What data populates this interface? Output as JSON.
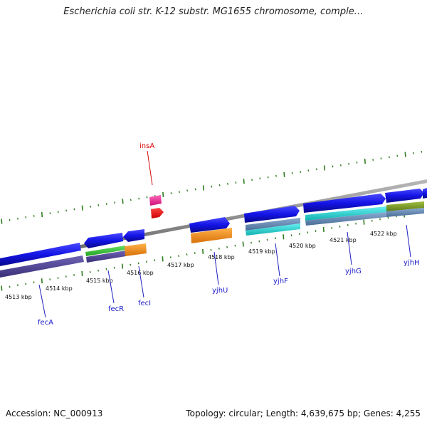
{
  "title": "Escherichia coli str. K-12 substr. MG1655 chromosome, comple…",
  "footer": {
    "accession": "Accession: NC_000913",
    "summary": "Topology: circular; Length: 4,639,675 bp; Genes: 4,255"
  },
  "axis": {
    "labels": [
      "4513 kbp",
      "4514 kbp",
      "4515 kbp",
      "4516 kbp",
      "4517 kbp",
      "4518 kbp",
      "4519 kbp",
      "4520 kbp",
      "4521 kbp",
      "4522 kbp"
    ],
    "colors": {
      "backbone": "#8c8c8c",
      "ticks": "#2e7d1e"
    }
  },
  "genes": [
    {
      "name": "fecA",
      "color": "#1010e0"
    },
    {
      "name": "fecR",
      "color": "#1010e0"
    },
    {
      "name": "fecI",
      "color": "#1010e0"
    },
    {
      "name": "insA",
      "color": "#dd0000"
    },
    {
      "name": "yjhU",
      "color": "#1010e0"
    },
    {
      "name": "yjhF",
      "color": "#1010e0"
    },
    {
      "name": "yjhG",
      "color": "#1010e0"
    },
    {
      "name": "yjhH",
      "color": "#1010e0"
    }
  ],
  "feature_colors": {
    "cds_forward": "#1a1ae6",
    "cds_reverse": "#1a1ae6",
    "purple": "#4a3f8f",
    "green": "#3cc83c",
    "orange": "#f09020",
    "magenta": "#ee3399",
    "red": "#ee0000",
    "cyan": "#22cccc",
    "steel": "#5a7fa8",
    "olive": "#7a9a2a"
  }
}
